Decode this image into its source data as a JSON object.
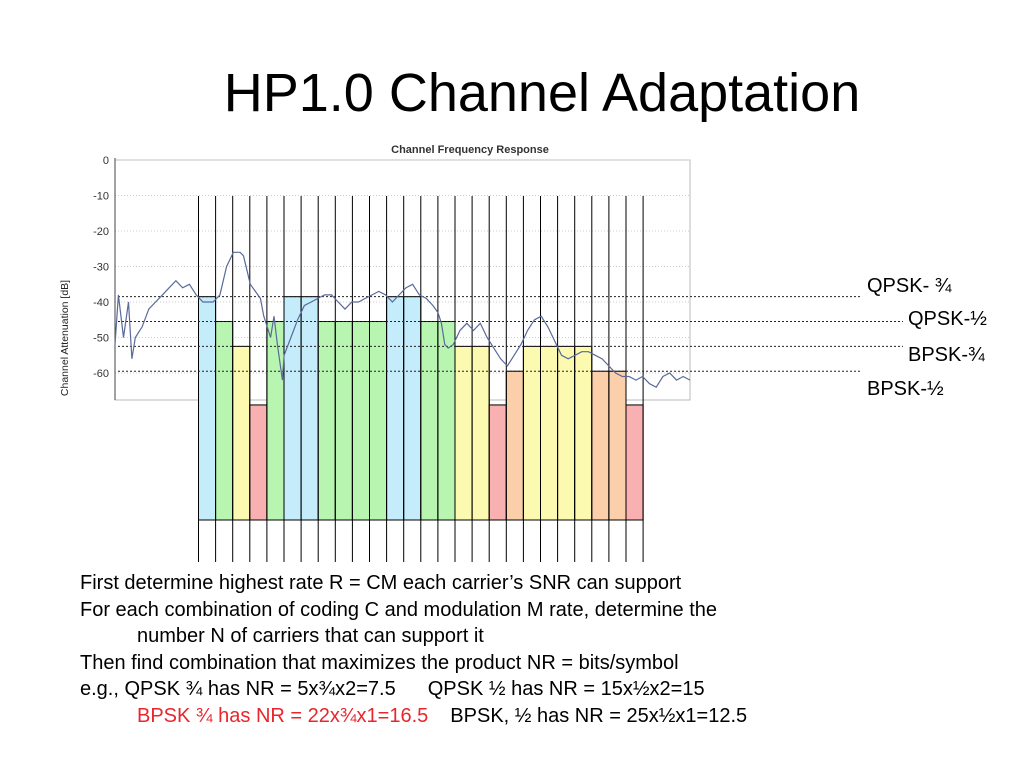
{
  "title": "HP1.0 Channel Adaptation",
  "chart": {
    "title": "Channel Frequency Response",
    "ylabel": "Channel Attenuation [dB]",
    "yticks": [
      "0",
      "-10",
      "-20",
      "-30",
      "-40",
      "-50",
      "-60"
    ]
  },
  "rate_labels": {
    "qpsk_34": "QPSK- ¾",
    "qpsk_12": "QPSK-½",
    "bpsk_34": "BPSK-¾",
    "bpsk_12": "BPSK-½"
  },
  "colors": {
    "qpsk_34": "#c5ecfa",
    "qpsk_12": "#b8f5b0",
    "bpsk_34": "#fbfab0",
    "bpsk_12": "#f8b0b0",
    "bpsk_12_alt": "#fbcfaa",
    "emphasis": "#e8262c",
    "curve": "#5a6a9a"
  },
  "chart_data": {
    "type": "bar",
    "ylim": [
      -70,
      0
    ],
    "thresholds": [
      {
        "name": "QPSK- ¾",
        "value": -38.5
      },
      {
        "name": "QPSK-½",
        "value": -45.5
      },
      {
        "name": "BPSK-¾",
        "value": -52.5
      },
      {
        "name": "BPSK-½",
        "value": -59.5
      }
    ],
    "carriers": [
      {
        "rate": "qpsk_34",
        "value": -38.5
      },
      {
        "rate": "qpsk_12",
        "value": -45.5
      },
      {
        "rate": "bpsk_34",
        "value": -52.5
      },
      {
        "rate": "bpsk_12",
        "value": -69.0
      },
      {
        "rate": "qpsk_12",
        "value": -45.5
      },
      {
        "rate": "qpsk_34",
        "value": -38.5
      },
      {
        "rate": "qpsk_34",
        "value": -38.5
      },
      {
        "rate": "qpsk_12",
        "value": -45.5
      },
      {
        "rate": "qpsk_12",
        "value": -45.5
      },
      {
        "rate": "qpsk_12",
        "value": -45.5
      },
      {
        "rate": "qpsk_12",
        "value": -45.5
      },
      {
        "rate": "qpsk_34",
        "value": -38.5
      },
      {
        "rate": "qpsk_34",
        "value": -38.5
      },
      {
        "rate": "qpsk_12",
        "value": -45.5
      },
      {
        "rate": "qpsk_12",
        "value": -45.5
      },
      {
        "rate": "bpsk_34",
        "value": -52.5
      },
      {
        "rate": "bpsk_34",
        "value": -52.5
      },
      {
        "rate": "bpsk_12",
        "value": -69.0
      },
      {
        "rate": "bpsk_12_alt",
        "value": -59.5
      },
      {
        "rate": "bpsk_34",
        "value": -52.5
      },
      {
        "rate": "bpsk_34",
        "value": -52.5
      },
      {
        "rate": "bpsk_34",
        "value": -52.5
      },
      {
        "rate": "bpsk_34",
        "value": -52.5
      },
      {
        "rate": "bpsk_12_alt",
        "value": -59.5
      },
      {
        "rate": "bpsk_12_alt",
        "value": -59.5
      },
      {
        "rate": "bpsk_12",
        "value": -69.0
      }
    ],
    "curve": [
      [
        0,
        -52
      ],
      [
        0.01,
        -38
      ],
      [
        0.025,
        -50
      ],
      [
        0.04,
        -40
      ],
      [
        0.05,
        -56
      ],
      [
        0.06,
        -50
      ],
      [
        0.08,
        -47
      ],
      [
        0.1,
        -42
      ],
      [
        0.12,
        -40
      ],
      [
        0.14,
        -38
      ],
      [
        0.16,
        -36
      ],
      [
        0.18,
        -34
      ],
      [
        0.2,
        -36
      ],
      [
        0.22,
        -35
      ],
      [
        0.24,
        -38
      ],
      [
        0.26,
        -40
      ],
      [
        0.29,
        -40
      ],
      [
        0.31,
        -38
      ],
      [
        0.33,
        -30
      ],
      [
        0.35,
        -26
      ],
      [
        0.37,
        -26
      ],
      [
        0.38,
        -27
      ],
      [
        0.4,
        -35
      ],
      [
        0.43,
        -39
      ],
      [
        0.44,
        -44
      ],
      [
        0.46,
        -50
      ],
      [
        0.47,
        -44
      ],
      [
        0.48,
        -52
      ],
      [
        0.495,
        -62
      ],
      [
        0.5,
        -55
      ],
      [
        0.52,
        -50
      ],
      [
        0.54,
        -45
      ],
      [
        0.56,
        -41
      ],
      [
        0.58,
        -40
      ],
      [
        0.6,
        -39
      ],
      [
        0.62,
        -38
      ],
      [
        0.64,
        -38
      ],
      [
        0.66,
        -40
      ],
      [
        0.68,
        -42
      ],
      [
        0.7,
        -40
      ],
      [
        0.72,
        -40
      ],
      [
        0.74,
        -39
      ],
      [
        0.76,
        -38
      ],
      [
        0.78,
        -37
      ],
      [
        0.8,
        -38
      ],
      [
        0.82,
        -40
      ],
      [
        0.84,
        -38
      ],
      [
        0.86,
        -36
      ],
      [
        0.88,
        -35
      ],
      [
        0.9,
        -38
      ],
      [
        0.92,
        -39
      ],
      [
        0.94,
        -41
      ],
      [
        0.955,
        -43
      ],
      [
        0.965,
        -46
      ],
      [
        0.975,
        -52
      ],
      [
        0.985,
        -53
      ],
      [
        1.0,
        -52
      ],
      [
        1.02,
        -48
      ],
      [
        1.04,
        -46
      ],
      [
        1.06,
        -48
      ],
      [
        1.08,
        -46
      ],
      [
        1.1,
        -50
      ],
      [
        1.12,
        -53
      ],
      [
        1.14,
        -56
      ],
      [
        1.16,
        -58
      ],
      [
        1.18,
        -55
      ],
      [
        1.2,
        -52
      ],
      [
        1.22,
        -48
      ],
      [
        1.24,
        -45
      ],
      [
        1.26,
        -44
      ],
      [
        1.28,
        -47
      ],
      [
        1.3,
        -51
      ],
      [
        1.32,
        -55
      ],
      [
        1.34,
        -56
      ],
      [
        1.36,
        -55
      ],
      [
        1.38,
        -54
      ],
      [
        1.4,
        -54
      ],
      [
        1.42,
        -55
      ],
      [
        1.44,
        -56
      ],
      [
        1.46,
        -58
      ],
      [
        1.48,
        -60
      ],
      [
        1.5,
        -61
      ],
      [
        1.52,
        -61
      ],
      [
        1.54,
        -62
      ],
      [
        1.56,
        -61
      ],
      [
        1.58,
        -63
      ],
      [
        1.6,
        -64
      ],
      [
        1.62,
        -61
      ],
      [
        1.64,
        -60
      ],
      [
        1.66,
        -62
      ],
      [
        1.68,
        -61
      ],
      [
        1.7,
        -62
      ]
    ]
  },
  "body": {
    "line1": "First determine highest rate R = CM each carrier’s SNR can support",
    "line2": "For each combination of coding C and modulation M rate, determine the",
    "line3": "number N of carriers that can support it",
    "line4": "Then find combination that maximizes the product NR = bits/symbol",
    "line5a": "e.g., QPSK ¾ has NR = 5x¾x2=7.5",
    "line5b": "QPSK ½ has NR = 15x½x2=15",
    "line6a": "BPSK ¾ has NR = 22x¾x1=16.5",
    "line6b": "BPSK, ½ has NR = 25x½x1=12.5"
  }
}
